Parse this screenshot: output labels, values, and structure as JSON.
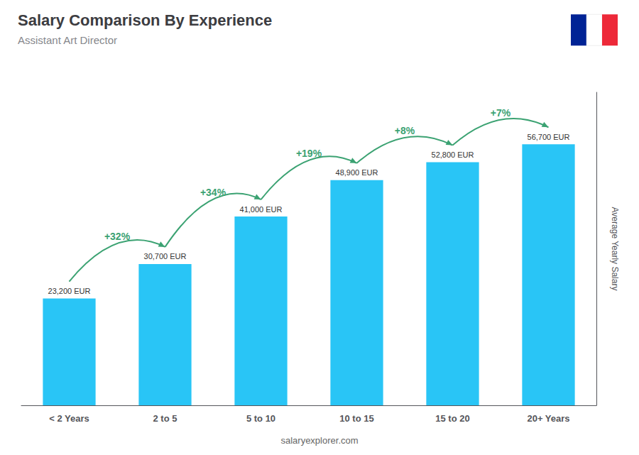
{
  "chart_data": {
    "type": "bar",
    "title": "Salary Comparison By Experience",
    "subtitle": "Assistant Art Director",
    "categories": [
      "< 2 Years",
      "2 to 5",
      "5 to 10",
      "10 to 15",
      "15 to 20",
      "20+ Years"
    ],
    "values": [
      23200,
      30700,
      41000,
      48900,
      52800,
      56700
    ],
    "value_labels": [
      "23,200 EUR",
      "30,700 EUR",
      "41,000 EUR",
      "48,900 EUR",
      "52,800 EUR",
      "56,700 EUR"
    ],
    "data_labels": true,
    "color": "#29c5f6",
    "annotations": [
      "+32%",
      "+34%",
      "+19%",
      "+8%",
      "+7%"
    ],
    "ylabel": "Average Yearly Salary",
    "watermark": "salaryexplorer.com",
    "ylim": [
      0,
      68000
    ],
    "grid": false,
    "tick_labels": "x"
  }
}
